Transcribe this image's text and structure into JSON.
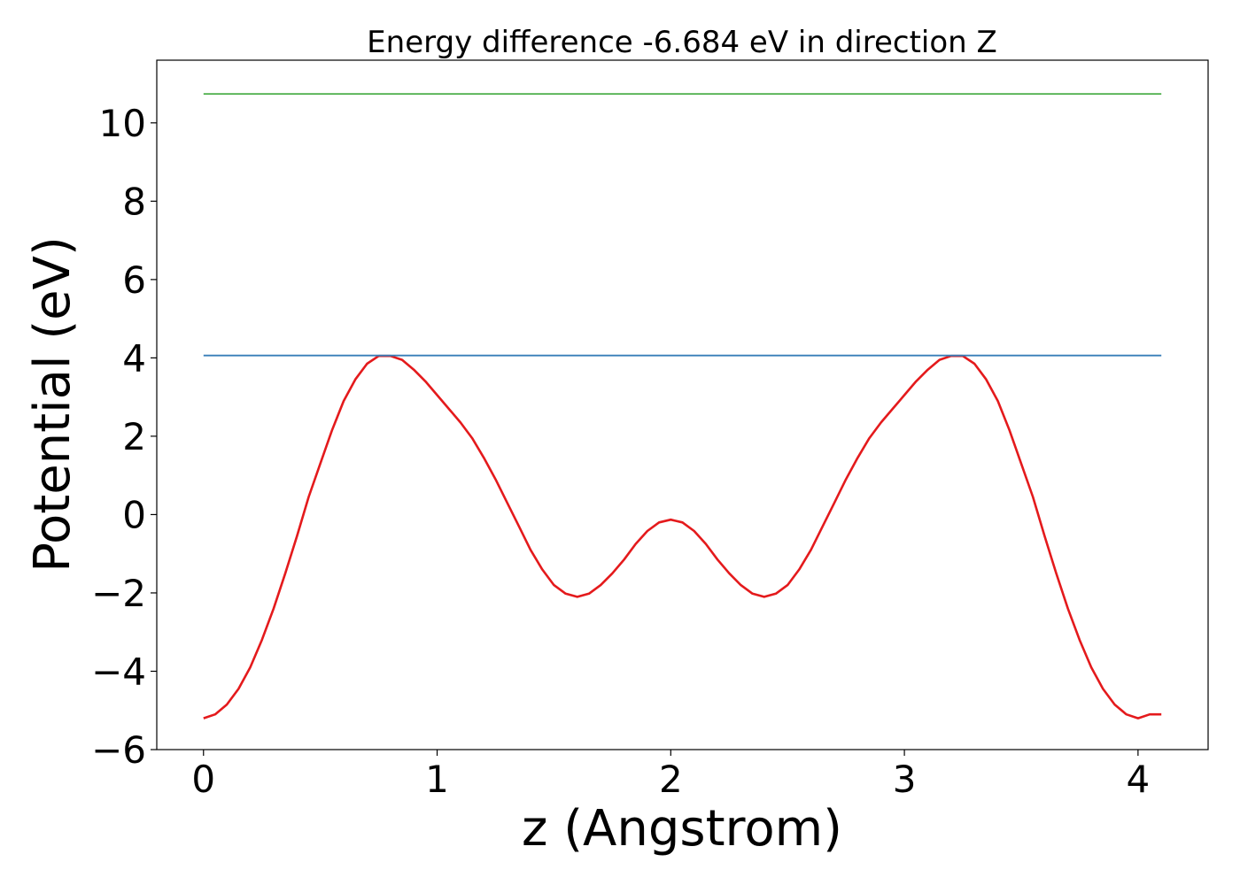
{
  "chart_data": {
    "type": "line",
    "title": "Energy difference -6.684 eV in direction Z",
    "xlabel": "z (Angstrom)",
    "ylabel": "Potential (eV)",
    "xlim": [
      -0.2,
      4.3
    ],
    "ylim": [
      -6,
      11.6
    ],
    "xticks": [
      0,
      1,
      2,
      3,
      4
    ],
    "yticks": [
      -6,
      -4,
      -2,
      0,
      2,
      4,
      6,
      8,
      10
    ],
    "xtick_labels": [
      "0",
      "1",
      "2",
      "3",
      "4"
    ],
    "ytick_labels": [
      "−6",
      "−4",
      "−2",
      "0",
      "2",
      "4",
      "6",
      "8",
      "10"
    ],
    "grid": false,
    "series": [
      {
        "color": "#e41a1c",
        "x": [
          0.0,
          0.05,
          0.1,
          0.15,
          0.2,
          0.25,
          0.3,
          0.35,
          0.4,
          0.45,
          0.5,
          0.55,
          0.6,
          0.65,
          0.7,
          0.75,
          0.8,
          0.85,
          0.9,
          0.95,
          1.0,
          1.05,
          1.1,
          1.15,
          1.2,
          1.25,
          1.3,
          1.35,
          1.4,
          1.45,
          1.5,
          1.55,
          1.6,
          1.65,
          1.7,
          1.75,
          1.8,
          1.85,
          1.9,
          1.95,
          2.0,
          2.05,
          2.1,
          2.15,
          2.2,
          2.25,
          2.3,
          2.35,
          2.4,
          2.45,
          2.5,
          2.55,
          2.6,
          2.65,
          2.7,
          2.75,
          2.8,
          2.85,
          2.9,
          2.95,
          3.0,
          3.05,
          3.1,
          3.15,
          3.2,
          3.25,
          3.3,
          3.35,
          3.4,
          3.45,
          3.5,
          3.55,
          3.6,
          3.65,
          3.7,
          3.75,
          3.8,
          3.85,
          3.9,
          3.95,
          4.0,
          4.05,
          4.1
        ],
        "y": [
          -5.2,
          -5.1,
          -4.85,
          -4.45,
          -3.9,
          -3.2,
          -2.4,
          -1.5,
          -0.55,
          0.45,
          1.3,
          2.15,
          2.9,
          3.45,
          3.85,
          4.05,
          4.05,
          3.95,
          3.7,
          3.4,
          3.05,
          2.7,
          2.35,
          1.95,
          1.45,
          0.9,
          0.3,
          -0.3,
          -0.9,
          -1.4,
          -1.8,
          -2.02,
          -2.1,
          -2.02,
          -1.8,
          -1.5,
          -1.15,
          -0.75,
          -0.42,
          -0.2,
          -0.13,
          -0.2,
          -0.42,
          -0.75,
          -1.15,
          -1.5,
          -1.8,
          -2.02,
          -2.1,
          -2.02,
          -1.8,
          -1.4,
          -0.9,
          -0.3,
          0.3,
          0.9,
          1.45,
          1.95,
          2.35,
          2.7,
          3.05,
          3.4,
          3.7,
          3.95,
          4.05,
          4.05,
          3.85,
          3.45,
          2.9,
          2.15,
          1.3,
          0.45,
          -0.55,
          -1.5,
          -2.4,
          -3.2,
          -3.9,
          -4.45,
          -4.85,
          -5.1,
          -5.2,
          -5.1,
          -5.1
        ]
      },
      {
        "color": "#377eb8",
        "x": [
          0.0,
          4.1
        ],
        "y": [
          4.06,
          4.06
        ]
      },
      {
        "color": "#4daf4a",
        "x": [
          0.0,
          4.1
        ],
        "y": [
          10.74,
          10.74
        ]
      }
    ]
  }
}
